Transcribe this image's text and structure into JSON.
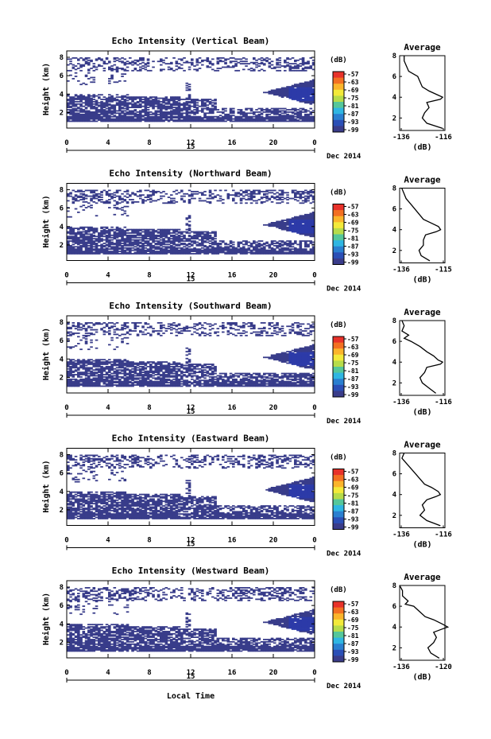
{
  "shared": {
    "x_ticks": [
      "0",
      "4",
      "8",
      "12",
      "16",
      "20",
      "0"
    ],
    "x_tick_values": [
      0,
      4,
      8,
      12,
      16,
      20,
      24
    ],
    "y_ticks": [
      "2",
      "4",
      "6",
      "8"
    ],
    "y_tick_values": [
      2,
      4,
      6,
      8
    ],
    "day_marker": "15",
    "date_label": "Dec 2014",
    "ylabel": "Height (km)",
    "xlabel": "Local Time",
    "colorbar_unit": "(dB)",
    "colorbar_ticks": [
      "-57",
      "-63",
      "-69",
      "-75",
      "-81",
      "-87",
      "-93",
      "-99"
    ],
    "colorbar_values": [
      -57,
      -63,
      -69,
      -75,
      -81,
      -87,
      -93,
      -99
    ],
    "profile_title": "Average",
    "profile_unit": "(dB)",
    "colors": {
      "echo": "#383c8a",
      "strong": "#2c3aa8",
      "colorbar": [
        "#e8322a",
        "#f37022",
        "#fbb52b",
        "#f3ea3a",
        "#b6dc4a",
        "#55c79a",
        "#2fb6e2",
        "#2a7fd0",
        "#2b4fb6",
        "#3a3c8a"
      ]
    }
  },
  "chart_data": [
    {
      "type": "heatmap",
      "title": "Echo Intensity (Vertical Beam)",
      "xlim": [
        0,
        24
      ],
      "ylim": [
        1,
        8
      ],
      "profile": {
        "xlim": [
          -136,
          -116
        ],
        "xticks": [
          "-136",
          "-116"
        ],
        "heights": [
          1.0,
          1.5,
          2.0,
          2.5,
          3.0,
          3.5,
          3.8,
          4.0,
          4.2,
          4.6,
          5.0,
          5.5,
          6.0,
          6.5,
          7.0,
          7.5,
          8.0
        ],
        "values": [
          -117,
          -124,
          -126,
          -125,
          -123,
          -124,
          -118,
          -117,
          -119,
          -123,
          -126,
          -127,
          -128,
          -132,
          -133,
          -134,
          -134
        ]
      }
    },
    {
      "type": "heatmap",
      "title": "Echo Intensity (Northward Beam)",
      "xlim": [
        0,
        24
      ],
      "ylim": [
        1,
        8
      ],
      "profile": {
        "xlim": [
          -136,
          -115
        ],
        "xticks": [
          "-136",
          "-115"
        ],
        "heights": [
          1.0,
          1.5,
          2.0,
          2.5,
          3.0,
          3.5,
          3.8,
          4.0,
          4.3,
          4.7,
          5.0,
          5.5,
          6.0,
          6.5,
          7.0,
          7.5,
          8.0
        ],
        "values": [
          -122,
          -126,
          -127,
          -125,
          -125,
          -124,
          -119,
          -117,
          -118,
          -122,
          -125,
          -127,
          -129,
          -131,
          -133,
          -134,
          -135
        ]
      }
    },
    {
      "type": "heatmap",
      "title": "Echo Intensity (Southward Beam)",
      "xlim": [
        0,
        24
      ],
      "ylim": [
        1,
        8
      ],
      "profile": {
        "xlim": [
          -136,
          -116
        ],
        "xticks": [
          "-136",
          "-116"
        ],
        "heights": [
          1.0,
          1.5,
          2.0,
          2.5,
          3.0,
          3.5,
          3.8,
          4.0,
          4.2,
          4.6,
          5.0,
          5.5,
          6.0,
          6.3,
          6.6,
          7.0,
          7.5,
          8.0
        ],
        "values": [
          -120,
          -123,
          -126,
          -127,
          -125,
          -124,
          -118,
          -117,
          -119,
          -121,
          -124,
          -127,
          -131,
          -134,
          -132,
          -135,
          -134,
          -135
        ]
      }
    },
    {
      "type": "heatmap",
      "title": "Echo Intensity (Eastward Beam)",
      "xlim": [
        0,
        24
      ],
      "ylim": [
        1,
        8
      ],
      "profile": {
        "xlim": [
          -136,
          -116
        ],
        "xticks": [
          "-136",
          "-116"
        ],
        "heights": [
          1.0,
          1.5,
          2.0,
          2.5,
          3.0,
          3.5,
          3.8,
          4.0,
          4.3,
          4.7,
          5.0,
          5.5,
          6.0,
          6.5,
          7.0,
          7.5,
          8.0
        ],
        "values": [
          -118,
          -124,
          -127,
          -125,
          -126,
          -124,
          -120,
          -118,
          -119,
          -122,
          -125,
          -127,
          -129,
          -131,
          -133,
          -135,
          -134
        ]
      }
    },
    {
      "type": "heatmap",
      "title": "Echo Intensity (Westward Beam)",
      "xlim": [
        0,
        24
      ],
      "ylim": [
        1,
        8
      ],
      "profile": {
        "xlim": [
          -136,
          -120
        ],
        "xticks": [
          "-136",
          "-120"
        ],
        "heights": [
          1.0,
          1.5,
          2.0,
          2.5,
          3.0,
          3.5,
          3.8,
          4.0,
          4.3,
          4.7,
          5.0,
          5.5,
          6.0,
          6.2,
          6.5,
          7.0,
          7.5,
          8.0
        ],
        "values": [
          -122,
          -125,
          -126,
          -124,
          -123,
          -124,
          -121,
          -119,
          -121,
          -124,
          -127,
          -129,
          -131,
          -134,
          -133,
          -135,
          -135,
          -136
        ]
      }
    }
  ]
}
